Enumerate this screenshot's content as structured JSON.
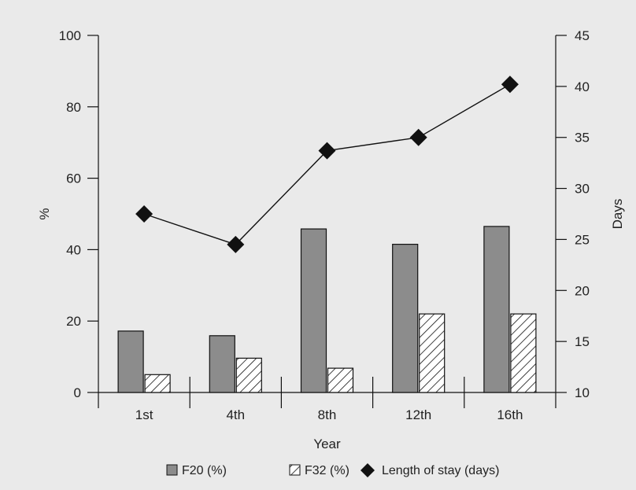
{
  "chart_data": {
    "type": "bar",
    "categories": [
      "1st",
      "4th",
      "8th",
      "12th",
      "16th"
    ],
    "xlabel": "Year",
    "ylabel_left": "%",
    "ylabel_right": "Days",
    "ylim_left": [
      0,
      100
    ],
    "yticks_left": [
      0,
      20,
      40,
      60,
      80,
      100
    ],
    "ylim_right": [
      10,
      45
    ],
    "yticks_right": [
      10,
      15,
      20,
      25,
      30,
      35,
      40,
      45
    ],
    "grid": false,
    "legend_position": "bottom",
    "series": [
      {
        "name": "F20 (%)",
        "type": "bar",
        "axis": "left",
        "style": "solid",
        "color": "#8c8c8c",
        "values": [
          17.2,
          15.9,
          45.8,
          41.5,
          46.5
        ]
      },
      {
        "name": "F32 (%)",
        "type": "bar",
        "axis": "left",
        "style": "hatched",
        "color": "#ffffff",
        "values": [
          5.0,
          9.6,
          6.8,
          22.0,
          22.0
        ]
      },
      {
        "name": "Length of stay (days)",
        "type": "line",
        "axis": "right",
        "marker": "diamond",
        "color": "#111111",
        "values": [
          27.5,
          24.5,
          33.7,
          35.0,
          40.2
        ]
      }
    ]
  }
}
